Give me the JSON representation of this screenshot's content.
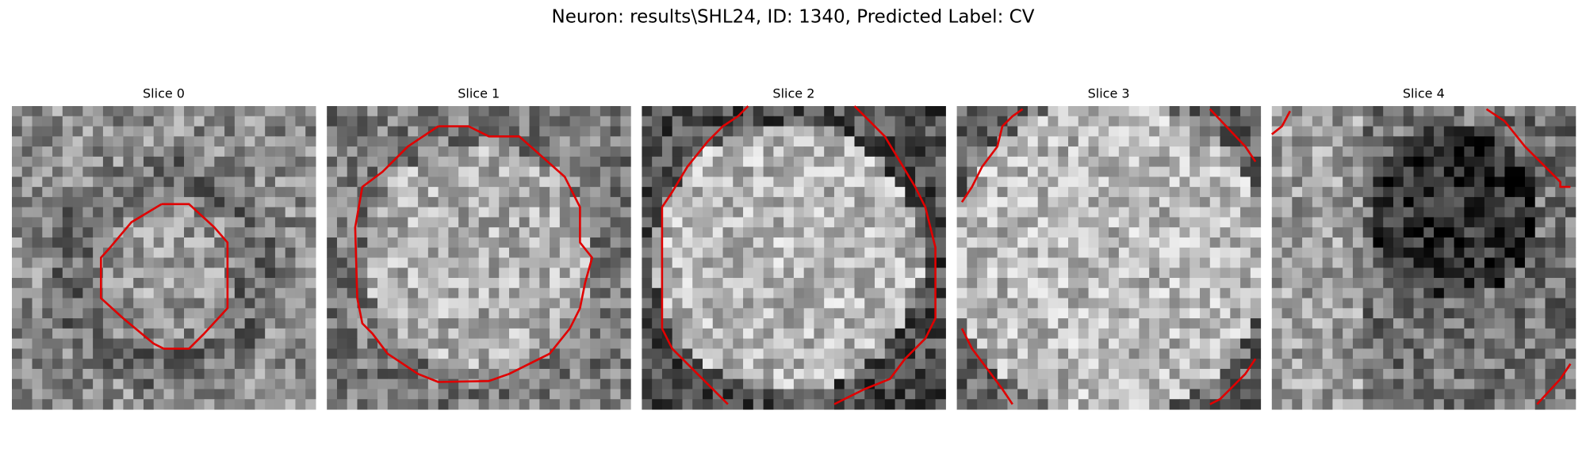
{
  "title": "Neuron: results\\SHL24, ID: 1340, Predicted Label: CV",
  "panels": [
    {
      "title": "Slice 0"
    },
    {
      "title": "Slice 1"
    },
    {
      "title": "Slice 2"
    },
    {
      "title": "Slice 3"
    },
    {
      "title": "Slice 4"
    }
  ]
}
